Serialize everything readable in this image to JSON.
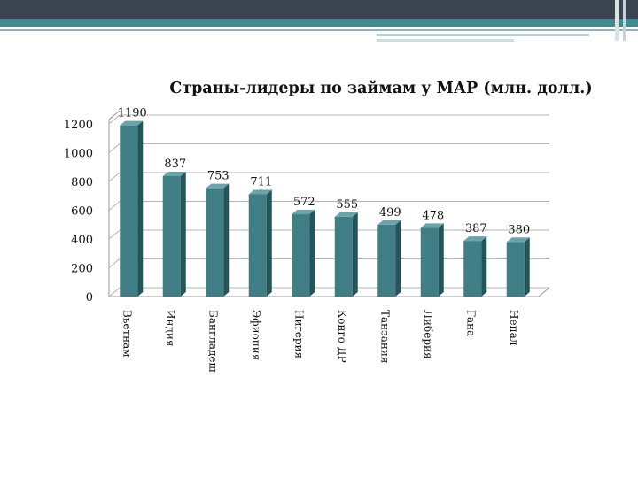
{
  "chart_data": {
    "type": "bar",
    "title": "Страны-лидеры по займам у МАР (млн. долл.)",
    "categories": [
      "Вьетнам",
      "Индия",
      "Бангладеш",
      "Эфиопия",
      "Нигерия",
      "Конго ДР",
      "Танзания",
      "Либерия",
      "Гана",
      "Непал"
    ],
    "values": [
      1190,
      837,
      753,
      711,
      572,
      555,
      499,
      478,
      387,
      380
    ],
    "data_labels": [
      "1190",
      "837",
      "753",
      "711",
      "572",
      "555",
      "499",
      "478",
      "387",
      "380"
    ],
    "yticks": [
      "0",
      "200",
      "400",
      "600",
      "800",
      "1000",
      "1200"
    ],
    "ylim": [
      0,
      1200
    ],
    "grid": true,
    "legend": "none",
    "bar_color": "#3e7e84"
  }
}
